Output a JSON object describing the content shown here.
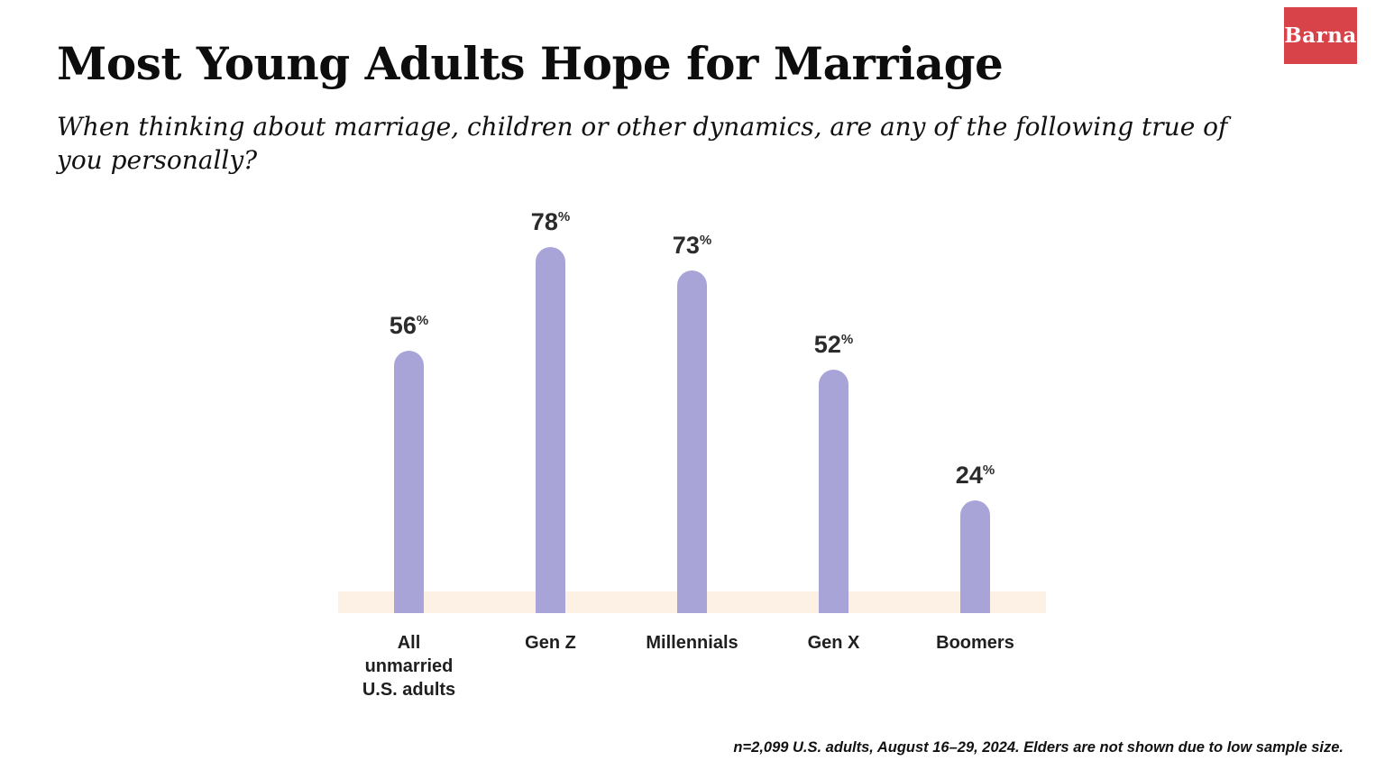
{
  "logo": {
    "text": "Barna",
    "bg": "#d8434a"
  },
  "header": {
    "title": "Most Young Adults Hope for Marriage",
    "subtitle": "When thinking about marriage, children or other dynamics, are any of the following true of you personally?"
  },
  "footnote": "n=2,099 U.S. adults, August 16–29, 2024. Elders are not shown due to low sample size.",
  "chart_data": {
    "type": "bar",
    "title": "Most Young Adults Hope for Marriage",
    "categories": [
      "All unmarried U.S. adults",
      "Gen Z",
      "Millennials",
      "Gen X",
      "Boomers"
    ],
    "category_display": [
      "All\nunmarried\nU.S. adults",
      "Gen Z",
      "Millennials",
      "Gen X",
      "Boomers"
    ],
    "values": [
      56,
      78,
      73,
      52,
      24
    ],
    "unit": "%",
    "ylim": [
      0,
      100
    ],
    "grid": false,
    "legend": "none",
    "bar_color": "#a8a4d7",
    "baseline_color": "#fdf1e6",
    "value_label_color": "#2b2b2b"
  }
}
